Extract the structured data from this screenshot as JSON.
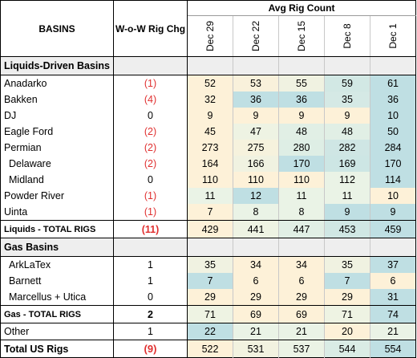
{
  "header": {
    "basins_label": "BASINS",
    "wow_label": "W-o-W Rig Chg",
    "avg_label": "Avg Rig Count",
    "dates": [
      "Dec 29",
      "Dec 22",
      "Dec 15",
      "Dec 8",
      "Dec 1"
    ]
  },
  "liquids_section": {
    "title": "Liquids-Driven Basins",
    "rows": [
      {
        "name": "Anadarko",
        "wow": "(1)",
        "values": [
          "52",
          "53",
          "55",
          "59",
          "61"
        ]
      },
      {
        "name": "Bakken",
        "wow": "(4)",
        "values": [
          "32",
          "36",
          "36",
          "35",
          "36"
        ]
      },
      {
        "name": "DJ",
        "wow": "0",
        "values": [
          "9",
          "9",
          "9",
          "9",
          "10"
        ]
      },
      {
        "name": "Eagle Ford",
        "wow": "(2)",
        "values": [
          "45",
          "47",
          "48",
          "48",
          "50"
        ]
      },
      {
        "name": "Permian",
        "wow": "(2)",
        "values": [
          "273",
          "275",
          "280",
          "282",
          "284"
        ]
      },
      {
        "name": "Delaware",
        "wow": "(2)",
        "values": [
          "164",
          "166",
          "170",
          "169",
          "170"
        ]
      },
      {
        "name": "Midland",
        "wow": "0",
        "values": [
          "110",
          "110",
          "110",
          "112",
          "114"
        ]
      },
      {
        "name": "Powder River",
        "wow": "(1)",
        "values": [
          "11",
          "12",
          "11",
          "11",
          "10"
        ]
      },
      {
        "name": "Uinta",
        "wow": "(1)",
        "values": [
          "7",
          "8",
          "8",
          "9",
          "9"
        ]
      }
    ],
    "total": {
      "name": "Liquids - TOTAL RIGS",
      "wow": "(11)",
      "values": [
        "429",
        "441",
        "447",
        "453",
        "459"
      ]
    }
  },
  "gas_section": {
    "title": "Gas Basins",
    "rows": [
      {
        "name": "ArkLaTex",
        "wow": "1",
        "values": [
          "35",
          "34",
          "34",
          "35",
          "37"
        ]
      },
      {
        "name": "Barnett",
        "wow": "1",
        "values": [
          "7",
          "6",
          "6",
          "7",
          "6"
        ]
      },
      {
        "name": "Marcellus + Utica",
        "wow": "0",
        "values": [
          "29",
          "29",
          "29",
          "29",
          "31"
        ]
      }
    ],
    "total": {
      "name": "Gas - TOTAL RIGS",
      "wow": "2",
      "values": [
        "71",
        "69",
        "69",
        "71",
        "74"
      ]
    }
  },
  "other": {
    "name": "Other",
    "wow": "1",
    "values": [
      "22",
      "21",
      "21",
      "20",
      "21"
    ]
  },
  "us_total": {
    "name": "Total US Rigs",
    "wow": "(9)",
    "values": [
      "522",
      "531",
      "537",
      "544",
      "554"
    ]
  },
  "colors": {
    "negative": "#e03030",
    "heat_low": "#fdf1d8",
    "heat_mid": "#eaf3e6",
    "heat_high": "#bfdfe3",
    "section_gray": "#eeeeee"
  }
}
